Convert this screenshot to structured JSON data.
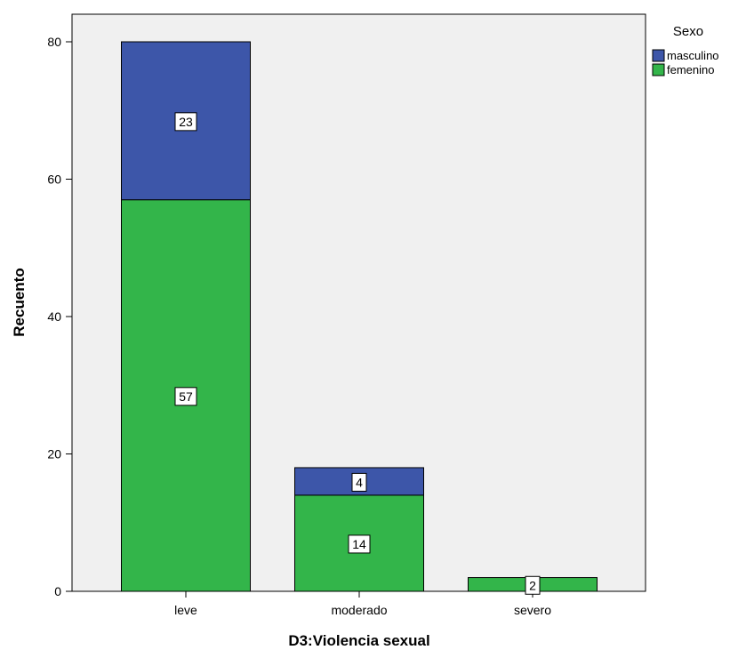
{
  "chart_data": {
    "type": "bar",
    "stacked": true,
    "categories": [
      "leve",
      "moderado",
      "severo"
    ],
    "series": [
      {
        "name": "femenino",
        "values": [
          57,
          14,
          2
        ],
        "color": "#33b54a"
      },
      {
        "name": "masculino",
        "values": [
          23,
          4,
          0
        ],
        "color": "#3d56a9"
      }
    ],
    "data_labels": true,
    "title": "",
    "xlabel": "D3:Violencia sexual",
    "ylabel": "Recuento",
    "ylim": [
      0,
      80
    ],
    "yticks": [
      0,
      20,
      40,
      60,
      80
    ],
    "legend": {
      "title": "Sexo",
      "placement": "top-right",
      "order": [
        "masculino",
        "femenino"
      ]
    },
    "grid": false,
    "plot_background": "#f0f0f0"
  }
}
